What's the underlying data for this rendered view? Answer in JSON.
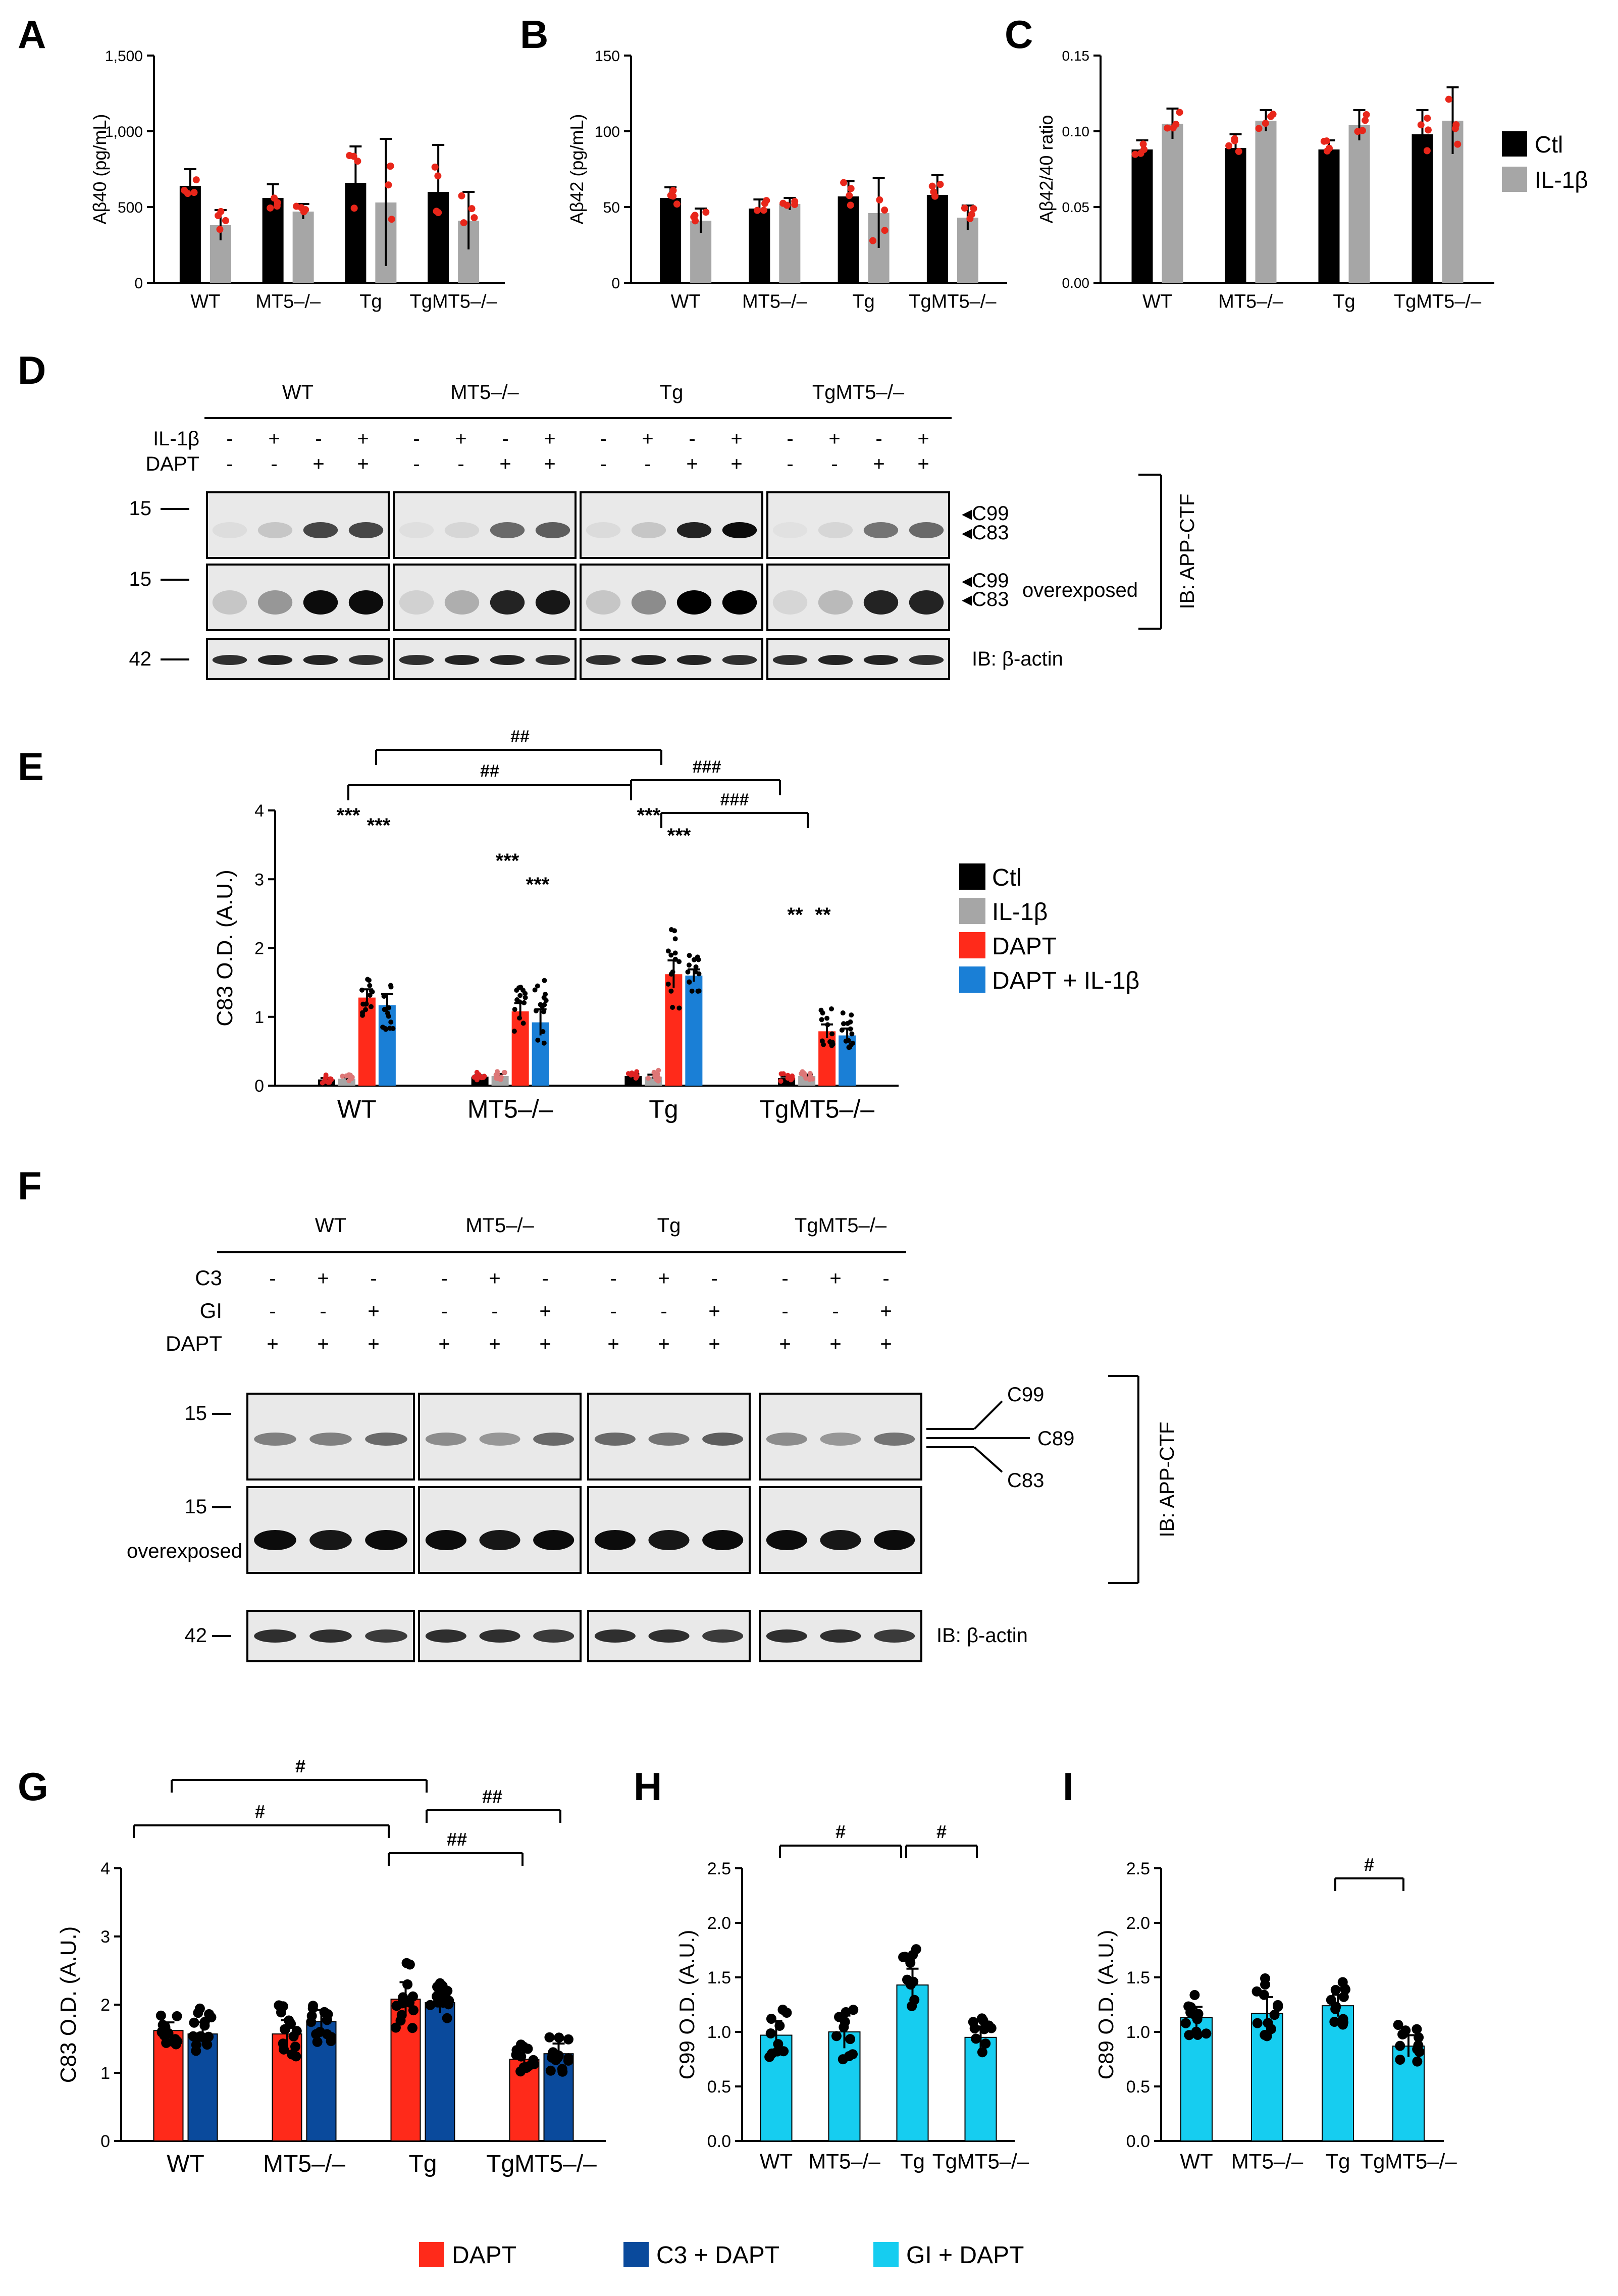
{
  "panel_letters": [
    "A",
    "B",
    "C",
    "D",
    "E",
    "F",
    "G",
    "H",
    "I"
  ],
  "groups": [
    "WT",
    "MT5–/–",
    "Tg",
    "TgMT5–/–"
  ],
  "colors": {
    "ctl": "#000000",
    "il1b": "#a6a6a6",
    "dapt": "#ff2a1a",
    "dapt_il1b": "#1a7fd6",
    "c3_dapt": "#0a4a9c",
    "gi_dapt": "#16cdf0",
    "dot_red": "#e8261a"
  },
  "legend_abc": [
    {
      "label": "Ctl",
      "color": "#000000"
    },
    {
      "label": "IL-1β",
      "color": "#a6a6a6"
    }
  ],
  "legend_e": [
    {
      "label": "Ctl",
      "color": "#000000"
    },
    {
      "label": "IL-1β",
      "color": "#a6a6a6"
    },
    {
      "label": "DAPT",
      "color": "#ff2a1a"
    },
    {
      "label": "DAPT + IL-1β",
      "color": "#1a7fd6"
    }
  ],
  "legend_ghi": [
    {
      "label": "DAPT",
      "color": "#ff2a1a"
    },
    {
      "label": "C3 + DAPT",
      "color": "#0a4a9c"
    },
    {
      "label": "GI + DAPT",
      "color": "#16cdf0"
    }
  ],
  "chart_data": [
    {
      "panel": "A",
      "type": "bar",
      "ylabel": "Aβ40 (pg/mL)",
      "ylim": [
        0,
        1500
      ],
      "yticks": [
        "0",
        "500",
        "1,000",
        "1,500"
      ],
      "ytick_values": [
        0,
        500,
        1000,
        1500
      ],
      "categories": [
        "WT",
        "MT5–/–",
        "Tg",
        "TgMT5–/–"
      ],
      "series": [
        {
          "name": "Ctl",
          "values": [
            640,
            560,
            660,
            600
          ],
          "err": [
            110,
            90,
            240,
            310
          ]
        },
        {
          "name": "IL-1β",
          "values": [
            380,
            470,
            530,
            410
          ],
          "err": [
            100,
            50,
            420,
            190
          ]
        }
      ]
    },
    {
      "panel": "B",
      "type": "bar",
      "ylabel": "Aβ42 (pg/mL)",
      "ylim": [
        0,
        150
      ],
      "yticks": [
        "0",
        "50",
        "100",
        "150"
      ],
      "ytick_values": [
        0,
        50,
        100,
        150
      ],
      "categories": [
        "WT",
        "MT5–/–",
        "Tg",
        "TgMT5–/–"
      ],
      "series": [
        {
          "name": "Ctl",
          "values": [
            56,
            49,
            57,
            58
          ],
          "err": [
            7,
            6,
            10,
            13
          ]
        },
        {
          "name": "IL-1β",
          "values": [
            41,
            52,
            46,
            43
          ],
          "err": [
            8,
            4,
            23,
            8
          ]
        }
      ]
    },
    {
      "panel": "C",
      "type": "bar",
      "ylabel": "Aβ42/40 ratio",
      "ylim": [
        0,
        0.15
      ],
      "yticks": [
        "0.00",
        "0.05",
        "0.10",
        "0.15"
      ],
      "ytick_values": [
        0,
        0.05,
        0.1,
        0.15
      ],
      "categories": [
        "WT",
        "MT5–/–",
        "Tg",
        "TgMT5–/–"
      ],
      "series": [
        {
          "name": "Ctl",
          "values": [
            0.088,
            0.089,
            0.088,
            0.098
          ],
          "err": [
            0.006,
            0.009,
            0.006,
            0.016
          ]
        },
        {
          "name": "IL-1β",
          "values": [
            0.105,
            0.107,
            0.104,
            0.107
          ],
          "err": [
            0.01,
            0.007,
            0.01,
            0.022
          ]
        }
      ]
    },
    {
      "panel": "E",
      "type": "bar",
      "ylabel": "C83 O.D. (A.U.)",
      "ylim": [
        0,
        4
      ],
      "yticks": [
        "0",
        "1",
        "2",
        "3",
        "4"
      ],
      "ytick_values": [
        0,
        1,
        2,
        3,
        4
      ],
      "categories": [
        "WT",
        "MT5–/–",
        "Tg",
        "TgMT5–/–"
      ],
      "series": [
        {
          "name": "Ctl",
          "values": [
            0.09,
            0.13,
            0.14,
            0.11
          ],
          "err": [
            0.02,
            0.02,
            0.03,
            0.02
          ]
        },
        {
          "name": "IL-1β",
          "values": [
            0.1,
            0.14,
            0.13,
            0.14
          ],
          "err": [
            0.02,
            0.03,
            0.03,
            0.02
          ]
        },
        {
          "name": "DAPT",
          "values": [
            1.28,
            1.08,
            1.62,
            0.79
          ],
          "err": [
            0.12,
            0.12,
            0.2,
            0.1
          ]
        },
        {
          "name": "DAPT + IL-1β",
          "values": [
            1.17,
            0.92,
            1.6,
            0.73
          ],
          "err": [
            0.16,
            0.19,
            0.09,
            0.1
          ]
        }
      ],
      "annotations": [
        "***",
        "***",
        "***",
        "***",
        "***",
        "***",
        "**",
        "**",
        "##",
        "##",
        "###",
        "###"
      ]
    },
    {
      "panel": "G",
      "type": "bar",
      "ylabel": "C83 O.D. (A.U.)",
      "ylim": [
        0,
        4
      ],
      "yticks": [
        "0",
        "1",
        "2",
        "3",
        "4"
      ],
      "ytick_values": [
        0,
        1,
        2,
        3,
        4
      ],
      "categories": [
        "WT",
        "MT5–/–",
        "Tg",
        "TgMT5–/–"
      ],
      "series": [
        {
          "name": "DAPT",
          "values": [
            1.62,
            1.57,
            2.08,
            1.2
          ],
          "err": [
            0.12,
            0.2,
            0.25,
            0.1
          ]
        },
        {
          "name": "C3 + DAPT",
          "values": [
            1.57,
            1.75,
            2.03,
            1.28
          ],
          "err": [
            0.17,
            0.17,
            0.15,
            0.15
          ]
        }
      ],
      "annotations": [
        "#",
        "#",
        "##",
        "##"
      ]
    },
    {
      "panel": "H",
      "type": "bar",
      "ylabel": "C99 O.D. (A.U.)",
      "ylim": [
        0,
        2.5
      ],
      "yticks": [
        "0.0",
        "0.5",
        "1.0",
        "1.5",
        "2.0",
        "2.5"
      ],
      "ytick_values": [
        0,
        0.5,
        1,
        1.5,
        2,
        2.5
      ],
      "categories": [
        "WT",
        "MT5–/–",
        "Tg",
        "TgMT5–/–"
      ],
      "series": [
        {
          "name": "GI + DAPT",
          "values": [
            0.97,
            1.0,
            1.43,
            0.95
          ],
          "err": [
            0.13,
            0.15,
            0.15,
            0.1
          ]
        }
      ],
      "annotations": [
        "#",
        "#"
      ]
    },
    {
      "panel": "I",
      "type": "bar",
      "ylabel": "C89 O.D. (A.U.)",
      "ylim": [
        0,
        2.5
      ],
      "yticks": [
        "0.0",
        "0.5",
        "1.0",
        "1.5",
        "2.0",
        "2.5"
      ],
      "ytick_values": [
        0,
        0.5,
        1,
        1.5,
        2,
        2.5
      ],
      "categories": [
        "WT",
        "MT5–/–",
        "Tg",
        "TgMT5–/–"
      ],
      "series": [
        {
          "name": "GI + DAPT",
          "values": [
            1.13,
            1.17,
            1.24,
            0.87
          ],
          "err": [
            0.1,
            0.15,
            0.1,
            0.1
          ]
        }
      ],
      "annotations": [
        "#"
      ]
    }
  ],
  "blot_d": {
    "rows": [
      "IL-1β",
      "DAPT"
    ],
    "lane_signs": [
      [
        "-",
        "+",
        "-",
        "+"
      ],
      [
        "-",
        "-",
        "+",
        "+"
      ]
    ],
    "mw": [
      "15",
      "15",
      "42"
    ],
    "band_labels": [
      "C99",
      "C83",
      "C99",
      "C83"
    ],
    "overexposed": "overexposed",
    "ib_right": "IB: APP-CTF",
    "ib_actin": "IB: β-actin"
  },
  "blot_f": {
    "rows": [
      "C3",
      "GI",
      "DAPT"
    ],
    "lane_signs": [
      [
        "-",
        "+",
        "-"
      ],
      [
        "-",
        "-",
        "+"
      ],
      [
        "+",
        "+",
        "+"
      ]
    ],
    "mw": [
      "15",
      "15",
      "42"
    ],
    "band_labels": [
      "C99",
      "C89",
      "C83"
    ],
    "overexposed": "overexposed",
    "ib_right": "IB: APP-CTF",
    "ib_actin": "IB: β-actin"
  }
}
